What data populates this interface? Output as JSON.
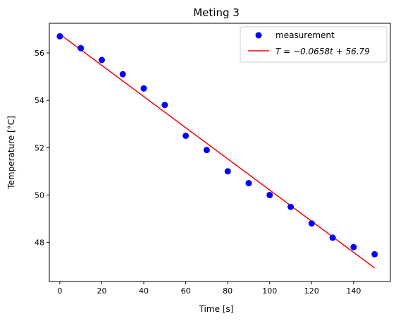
{
  "chart_data": {
    "type": "scatter",
    "title": "Meting 3",
    "xlabel": "Time [s]",
    "ylabel": "Temperature [°C]",
    "xlim": [
      -5,
      157.5
    ],
    "ylim": [
      46.35,
      57.25
    ],
    "xticks": [
      0,
      20,
      40,
      60,
      80,
      100,
      120,
      140
    ],
    "yticks": [
      48,
      50,
      52,
      54,
      56
    ],
    "grid": false,
    "legend_position": "top-right",
    "series": [
      {
        "name": "measurement",
        "kind": "scatter",
        "color": "#0000ff",
        "x": [
          0,
          10,
          20,
          30,
          40,
          50,
          60,
          70,
          80,
          90,
          100,
          110,
          120,
          130,
          140,
          150
        ],
        "y": [
          56.7,
          56.2,
          55.7,
          55.1,
          54.5,
          53.8,
          52.5,
          51.9,
          51.0,
          50.5,
          50.0,
          49.5,
          48.8,
          48.2,
          47.8,
          47.5
        ]
      },
      {
        "name": "T = −0.0658t + 56.79",
        "kind": "line",
        "color": "#ff0000",
        "slope": -0.0658,
        "intercept": 56.79,
        "x_range": [
          0,
          150
        ]
      }
    ]
  }
}
